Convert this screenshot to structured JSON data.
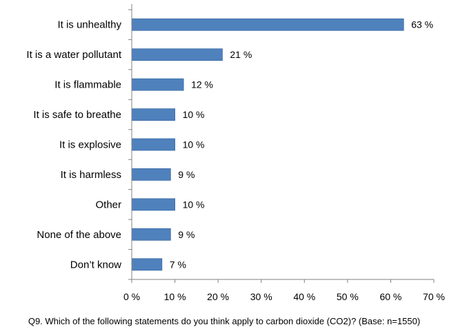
{
  "chart_data": {
    "type": "bar",
    "orientation": "horizontal",
    "categories": [
      "It is unhealthy",
      "It is a water pollutant",
      "It is flammable",
      "It is safe to breathe",
      "It is explosive",
      "It is harmless",
      "Other",
      "None of the above",
      "Don’t know"
    ],
    "values": [
      63,
      21,
      12,
      10,
      10,
      9,
      10,
      9,
      7
    ],
    "value_labels": [
      "63 %",
      "21 %",
      "12 %",
      "10 %",
      "10 %",
      "9 %",
      "10 %",
      "9 %",
      "7 %"
    ],
    "xlim": [
      0,
      70
    ],
    "x_ticks": [
      0,
      10,
      20,
      30,
      40,
      50,
      60,
      70
    ],
    "x_tick_labels": [
      "0 %",
      "10 %",
      "20 %",
      "30 %",
      "40 %",
      "50 %",
      "60 %",
      "70 %"
    ],
    "bar_color": "#4F81BD",
    "grid": false,
    "legend": "none",
    "caption": "Q9. Which of the following statements do you think apply to carbon dioxide (CO2)? (Base: n=1550)"
  }
}
